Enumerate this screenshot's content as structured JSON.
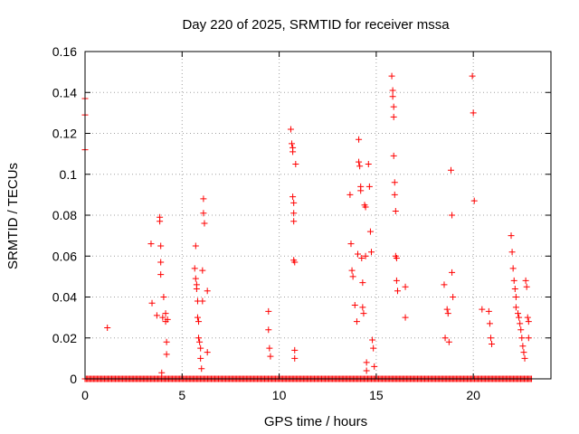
{
  "chart_data": {
    "type": "scatter",
    "title": "Day 220 of 2025, SRMTID for receiver mssa",
    "xlabel": "GPS time / hours",
    "ylabel": "SRMTID / TECUs",
    "xlim": [
      0,
      24
    ],
    "ylim": [
      0,
      0.16
    ],
    "xticks": [
      0,
      5,
      10,
      15,
      20
    ],
    "xtick_labels": [
      "0",
      "5",
      "10",
      "15",
      "20"
    ],
    "yticks": [
      0,
      0.02,
      0.04,
      0.06,
      0.08,
      0.1,
      0.12,
      0.14,
      0.16
    ],
    "ytick_labels": [
      "0",
      "0.02",
      "0.04",
      "0.06",
      "0.08",
      "0.1",
      "0.12",
      "0.14",
      "0.16"
    ],
    "grid": true,
    "marker": "+",
    "color": "#ff0000",
    "baseline_ranges": [
      [
        0,
        24
      ]
    ],
    "series": [
      {
        "name": "SRMTID",
        "x": [
          0.0,
          0.0,
          0.0,
          1.15,
          3.4,
          3.45,
          3.7,
          3.85,
          3.85,
          3.9,
          3.9,
          3.9,
          3.95,
          4.0,
          4.05,
          4.15,
          4.15,
          4.2,
          4.2,
          4.25,
          5.65,
          5.7,
          5.7,
          5.75,
          5.75,
          5.8,
          5.8,
          5.85,
          5.85,
          5.9,
          5.95,
          5.95,
          6.0,
          6.05,
          6.05,
          6.1,
          6.1,
          6.15,
          6.3,
          6.3,
          9.45,
          9.45,
          9.5,
          9.55,
          10.6,
          10.65,
          10.7,
          10.7,
          10.7,
          10.75,
          10.75,
          10.75,
          10.75,
          10.8,
          10.8,
          10.8,
          10.85,
          13.65,
          13.7,
          13.75,
          13.8,
          13.9,
          14.0,
          14.05,
          14.1,
          14.1,
          14.15,
          14.2,
          14.2,
          14.25,
          14.3,
          14.3,
          14.35,
          14.4,
          14.45,
          14.45,
          14.5,
          14.5,
          14.6,
          14.65,
          14.7,
          14.75,
          14.8,
          14.85,
          14.9,
          15.8,
          15.85,
          15.85,
          15.9,
          15.9,
          15.9,
          15.95,
          15.95,
          16.0,
          16.0,
          16.05,
          16.05,
          16.1,
          16.5,
          16.5,
          18.5,
          18.55,
          18.65,
          18.7,
          18.75,
          18.85,
          18.9,
          18.9,
          18.95,
          19.95,
          20.0,
          20.05,
          20.45,
          20.8,
          20.85,
          20.9,
          20.95,
          21.95,
          22.0,
          22.05,
          22.1,
          22.15,
          22.2,
          22.2,
          22.3,
          22.35,
          22.4,
          22.45,
          22.5,
          22.55,
          22.6,
          22.65,
          22.7,
          22.75,
          22.8,
          22.85,
          22.85
        ],
        "y": [
          0.137,
          0.129,
          0.112,
          0.025,
          0.066,
          0.037,
          0.031,
          0.079,
          0.077,
          0.065,
          0.057,
          0.051,
          0.003,
          0.03,
          0.04,
          0.032,
          0.028,
          0.018,
          0.012,
          0.029,
          0.054,
          0.065,
          0.049,
          0.046,
          0.044,
          0.038,
          0.03,
          0.028,
          0.02,
          0.018,
          0.015,
          0.01,
          0.005,
          0.053,
          0.038,
          0.088,
          0.081,
          0.076,
          0.043,
          0.013,
          0.033,
          0.024,
          0.015,
          0.011,
          0.122,
          0.115,
          0.113,
          0.111,
          0.089,
          0.086,
          0.081,
          0.077,
          0.058,
          0.057,
          0.014,
          0.01,
          0.105,
          0.09,
          0.066,
          0.053,
          0.05,
          0.036,
          0.028,
          0.061,
          0.117,
          0.106,
          0.104,
          0.094,
          0.092,
          0.059,
          0.047,
          0.035,
          0.032,
          0.085,
          0.084,
          0.06,
          0.008,
          0.004,
          0.105,
          0.094,
          0.072,
          0.062,
          0.019,
          0.015,
          0.006,
          0.148,
          0.141,
          0.138,
          0.133,
          0.128,
          0.109,
          0.096,
          0.09,
          0.082,
          0.06,
          0.059,
          0.048,
          0.043,
          0.045,
          0.03,
          0.046,
          0.02,
          0.034,
          0.032,
          0.018,
          0.102,
          0.08,
          0.052,
          0.04,
          0.148,
          0.13,
          0.087,
          0.034,
          0.033,
          0.027,
          0.02,
          0.017,
          0.07,
          0.062,
          0.054,
          0.048,
          0.044,
          0.04,
          0.035,
          0.032,
          0.03,
          0.027,
          0.024,
          0.02,
          0.016,
          0.013,
          0.01,
          0.048,
          0.045,
          0.03,
          0.028,
          0.02
        ]
      }
    ]
  }
}
